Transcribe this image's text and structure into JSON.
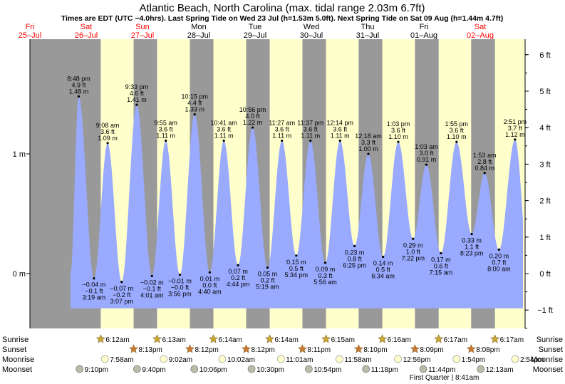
{
  "title": "Atlantic Beach, North Carolina (max. tidal range 2.03m 6.7ft)",
  "subtitle": "Times are EDT (UTC −4.0hrs). Last Spring Tide on Wed 23 Jul (h=1.53m 5.0ft). Next Spring Tide on Sat 09 Aug (h=1.44m 4.7ft)",
  "days": [
    {
      "dow": "Fri",
      "date": "25–Jul",
      "weekend": true
    },
    {
      "dow": "Sat",
      "date": "26–Jul",
      "weekend": true
    },
    {
      "dow": "Sun",
      "date": "27–Jul",
      "weekend": true
    },
    {
      "dow": "Mon",
      "date": "28–Jul",
      "weekend": false
    },
    {
      "dow": "Tue",
      "date": "29–Jul",
      "weekend": false
    },
    {
      "dow": "Wed",
      "date": "30–Jul",
      "weekend": false
    },
    {
      "dow": "Thu",
      "date": "31–Jul",
      "weekend": false
    },
    {
      "dow": "Fri",
      "date": "01–Aug",
      "weekend": false
    },
    {
      "dow": "Sat",
      "date": "02–Aug",
      "weekend": true
    }
  ],
  "chart_data": {
    "type": "area",
    "title": "Atlantic Beach, North Carolina (max. tidal range 2.03m 6.7ft)",
    "x_unit": "day (0 = 25 Jul 00:00 EDT)",
    "y_left_axis": {
      "unit": "m",
      "ticks": [
        {
          "value": 0,
          "label": "0 m"
        },
        {
          "value": 1,
          "label": "1 m"
        }
      ]
    },
    "y_right_axis": {
      "unit": "ft",
      "ticks": [
        "−1 ft",
        "0 ft",
        "1 ft",
        "2 ft",
        "3 ft",
        "4 ft",
        "5 ft",
        "6 ft"
      ]
    },
    "ylim_m": [
      -0.47,
      1.98
    ],
    "extremes": [
      {
        "type": "high",
        "day": 0,
        "time": "8:48 pm",
        "ft": "4.9 ft",
        "m": 1.48,
        "m_label": "1.48 m"
      },
      {
        "type": "low",
        "day": 1,
        "time": "3:19 am",
        "ft": "−0.1 ft",
        "m": -0.04,
        "m_label": "−0.04 m"
      },
      {
        "type": "high",
        "day": 1,
        "time": "9:08 am",
        "ft": "3.6 ft",
        "m": 1.09,
        "m_label": "1.09 m"
      },
      {
        "type": "low",
        "day": 1,
        "time": "3:07 pm",
        "ft": "−0.2 ft",
        "m": -0.07,
        "m_label": "−0.07 m"
      },
      {
        "type": "high",
        "day": 1,
        "time": "9:33 pm",
        "ft": "4.6 ft",
        "m": 1.41,
        "m_label": "1.41 m"
      },
      {
        "type": "low",
        "day": 2,
        "time": "4:01 am",
        "ft": "−0.1 ft",
        "m": -0.02,
        "m_label": "−0.02 m"
      },
      {
        "type": "high",
        "day": 2,
        "time": "9:55 am",
        "ft": "3.6 ft",
        "m": 1.11,
        "m_label": "1.11 m"
      },
      {
        "type": "low",
        "day": 2,
        "time": "3:56 pm",
        "ft": "−0.0 ft",
        "m": -0.01,
        "m_label": "−0.01 m"
      },
      {
        "type": "high",
        "day": 2,
        "time": "10:15 pm",
        "ft": "4.4 ft",
        "m": 1.33,
        "m_label": "1.33 m"
      },
      {
        "type": "low",
        "day": 3,
        "time": "4:40 am",
        "ft": "0.0 ft",
        "m": 0.01,
        "m_label": "0.01 m"
      },
      {
        "type": "high",
        "day": 3,
        "time": "10:41 am",
        "ft": "3.6 ft",
        "m": 1.11,
        "m_label": "1.11 m"
      },
      {
        "type": "low",
        "day": 3,
        "time": "4:44 pm",
        "ft": "0.2 ft",
        "m": 0.07,
        "m_label": "0.07 m"
      },
      {
        "type": "high",
        "day": 3,
        "time": "10:56 pm",
        "ft": "4.0 ft",
        "m": 1.22,
        "m_label": "1.22 m"
      },
      {
        "type": "low",
        "day": 4,
        "time": "5:19 am",
        "ft": "0.2 ft",
        "m": 0.05,
        "m_label": "0.05 m"
      },
      {
        "type": "high",
        "day": 4,
        "time": "11:27 am",
        "ft": "3.6 ft",
        "m": 1.11,
        "m_label": "1.11 m"
      },
      {
        "type": "low",
        "day": 4,
        "time": "5:34 pm",
        "ft": "0.5 ft",
        "m": 0.15,
        "m_label": "0.15 m"
      },
      {
        "type": "high",
        "day": 4,
        "time": "11:37 pm",
        "ft": "3.6 ft",
        "m": 1.11,
        "m_label": "1.11 m"
      },
      {
        "type": "low",
        "day": 5,
        "time": "5:56 am",
        "ft": "0.3 ft",
        "m": 0.09,
        "m_label": "0.09 m"
      },
      {
        "type": "high",
        "day": 5,
        "time": "12:14 pm",
        "ft": "3.6 ft",
        "m": 1.11,
        "m_label": "1.11 m"
      },
      {
        "type": "low",
        "day": 5,
        "time": "6:25 pm",
        "ft": "0.8 ft",
        "m": 0.23,
        "m_label": "0.23 m"
      },
      {
        "type": "high",
        "day": 6,
        "time": "12:18 am",
        "ft": "3.3 ft",
        "m": 1.0,
        "m_label": "1.00 m"
      },
      {
        "type": "low",
        "day": 6,
        "time": "6:34 am",
        "ft": "0.5 ft",
        "m": 0.14,
        "m_label": "0.14 m"
      },
      {
        "type": "high",
        "day": 6,
        "time": "1:03 pm",
        "ft": "3.6 ft",
        "m": 1.1,
        "m_label": "1.10 m"
      },
      {
        "type": "low",
        "day": 6,
        "time": "7:22 pm",
        "ft": "1.0 ft",
        "m": 0.29,
        "m_label": "0.29 m"
      },
      {
        "type": "high",
        "day": 7,
        "time": "1:03 am",
        "ft": "3.0 ft",
        "m": 0.91,
        "m_label": "0.91 m"
      },
      {
        "type": "low",
        "day": 7,
        "time": "7:15 am",
        "ft": "0.6 ft",
        "m": 0.17,
        "m_label": "0.17 m"
      },
      {
        "type": "high",
        "day": 7,
        "time": "1:55 pm",
        "ft": "3.6 ft",
        "m": 1.1,
        "m_label": "1.10 m"
      },
      {
        "type": "low",
        "day": 7,
        "time": "8:23 pm",
        "ft": "1.1 ft",
        "m": 0.33,
        "m_label": "0.33 m"
      },
      {
        "type": "high",
        "day": 8,
        "time": "1:53 am",
        "ft": "2.8 ft",
        "m": 0.84,
        "m_label": "0.84 m"
      },
      {
        "type": "low",
        "day": 8,
        "time": "8:00 am",
        "ft": "0.7 ft",
        "m": 0.2,
        "m_label": "0.20 m"
      },
      {
        "type": "high",
        "day": 8,
        "time": "2:51 pm",
        "ft": "3.7 ft",
        "m": 1.12,
        "m_label": "1.12 m"
      }
    ],
    "curve_start": {
      "day": 0.72,
      "m": 0.0
    },
    "curve_end": {
      "day": 8.76,
      "m": 0.45
    },
    "daylight": [
      {
        "day": 1,
        "sunrise": "6:12am",
        "sunset": "8:13pm"
      },
      {
        "day": 2,
        "sunrise": "6:13am",
        "sunset": "8:12pm"
      },
      {
        "day": 3,
        "sunrise": "6:14am",
        "sunset": "8:12pm"
      },
      {
        "day": 4,
        "sunrise": "6:14am",
        "sunset": "8:11pm"
      },
      {
        "day": 5,
        "sunrise": "6:15am",
        "sunset": "8:10pm"
      },
      {
        "day": 6,
        "sunrise": "6:16am",
        "sunset": "8:09pm"
      },
      {
        "day": 7,
        "sunrise": "6:17am",
        "sunset": "8:08pm"
      },
      {
        "day": 8,
        "sunrise": "6:17am",
        "sunset": ""
      }
    ],
    "moonrise": [
      {
        "day": 1,
        "time": "7:58am"
      },
      {
        "day": 2,
        "time": "9:02am"
      },
      {
        "day": 3,
        "time": "10:02am"
      },
      {
        "day": 4,
        "time": "11:01am"
      },
      {
        "day": 5,
        "time": "11:58am"
      },
      {
        "day": 6,
        "time": "12:56pm"
      },
      {
        "day": 7,
        "time": "1:54pm"
      },
      {
        "day": 8,
        "time": "2:54pm"
      }
    ],
    "moonset": [
      {
        "day": 0,
        "time": "9:10pm"
      },
      {
        "day": 1,
        "time": "9:40pm"
      },
      {
        "day": 2,
        "time": "10:06pm"
      },
      {
        "day": 3,
        "time": "10:30pm"
      },
      {
        "day": 4,
        "time": "10:54pm"
      },
      {
        "day": 5,
        "time": "11:18pm"
      },
      {
        "day": 6,
        "time": "11:44pm"
      },
      {
        "day": 8,
        "time": "12:13am"
      }
    ],
    "moon_phase": {
      "label": "First Quarter",
      "time": "8:41am",
      "day": 7
    }
  },
  "row_labels": {
    "sunrise": "Sunrise",
    "sunset": "Sunset",
    "moonrise": "Moonrise",
    "moonset": "Moonset"
  },
  "colors": {
    "night": "#999999",
    "day": "#ffffcc",
    "weekday_day": "#ffffcc",
    "tide_fill": "#99aaff",
    "weekend_text": "#ff0000",
    "sun": "#ccaa33",
    "sunset_icon": "#cc7733",
    "moon": "#ffffcc",
    "moonset_icon": "#bbbbaa"
  }
}
